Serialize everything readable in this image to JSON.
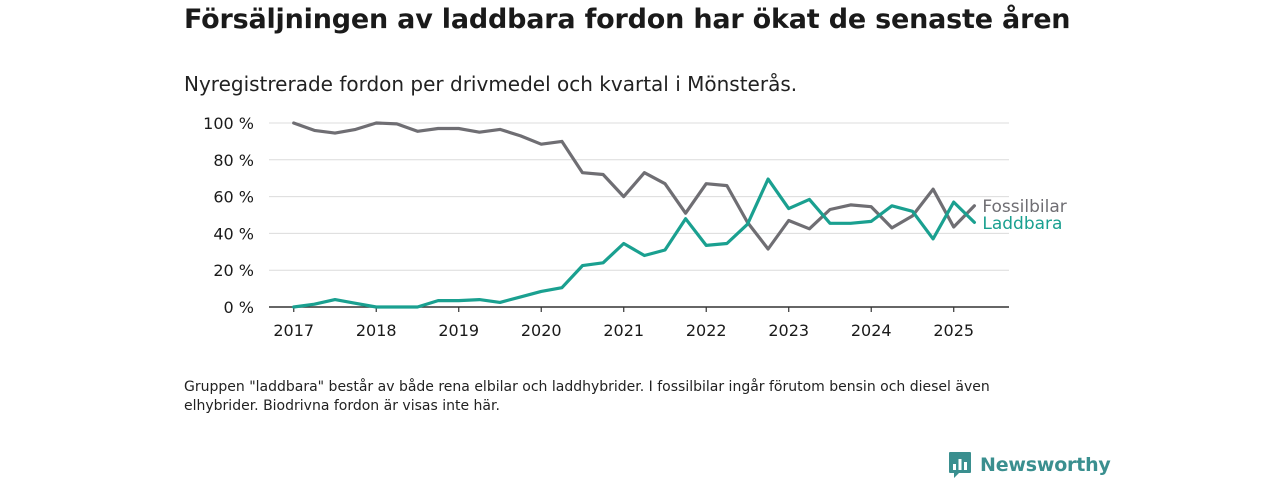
{
  "header": {
    "title": "Försäljningen av laddbara fordon har ökat de senaste åren",
    "subtitle": "Nyregistrerade fordon per drivmedel och kvartal i Mönsterås."
  },
  "chart_data": {
    "type": "line",
    "x": [
      2017.0,
      2017.25,
      2017.5,
      2017.75,
      2018.0,
      2018.25,
      2018.5,
      2018.75,
      2019.0,
      2019.25,
      2019.5,
      2019.75,
      2020.0,
      2020.25,
      2020.5,
      2020.75,
      2021.0,
      2021.25,
      2021.5,
      2021.75,
      2022.0,
      2022.25,
      2022.5,
      2022.75,
      2023.0,
      2023.25,
      2023.5,
      2023.75,
      2024.0,
      2024.25,
      2024.5,
      2024.75,
      2025.0,
      2025.25
    ],
    "series": [
      {
        "name": "Fossilbilar",
        "color": "#6f6e73",
        "values": [
          100,
          96,
          94.5,
          96.5,
          100,
          99.5,
          95.5,
          97,
          97,
          95,
          96.5,
          93,
          88.5,
          90,
          73,
          72,
          60,
          73,
          67,
          51,
          67,
          66,
          46,
          31.5,
          47,
          42.5,
          53,
          55.5,
          54.5,
          43,
          49.5,
          64,
          43.5,
          55
        ]
      },
      {
        "name": "Laddbara",
        "color": "#1aa090",
        "values": [
          0,
          1.5,
          4,
          2,
          0,
          0,
          0,
          3.5,
          3.5,
          4,
          2.5,
          5.5,
          8.5,
          10.5,
          22.5,
          24,
          34.5,
          28,
          31,
          48,
          33.5,
          34.5,
          45,
          69.5,
          53.5,
          58.5,
          45.5,
          45.5,
          46.5,
          55,
          52,
          37,
          57,
          46
        ]
      }
    ],
    "y_ticks": [
      "0 %",
      "20 %",
      "40 %",
      "60 %",
      "80 %",
      "100 %"
    ],
    "x_ticks": [
      "2017",
      "2018",
      "2019",
      "2020",
      "2021",
      "2022",
      "2023",
      "2024",
      "2025"
    ],
    "ylim": [
      0,
      100
    ],
    "xlim": [
      2016.7,
      2025.67
    ],
    "grid": true,
    "legend": "right, inline labels at line ends"
  },
  "note": "Gruppen \"laddbara\" består av både rena elbilar och laddhybrider. I fossilbilar ingår förutom bensin och diesel även elhybrider. Biodrivna fordon är visas inte här.",
  "logo": {
    "text": "Newsworthy",
    "icon": "chart-bubble-icon",
    "color": "#3a8f8f"
  },
  "colors": {
    "gridline": "#dcdcdc",
    "axis": "#333333",
    "text": "#1a1a1a"
  }
}
